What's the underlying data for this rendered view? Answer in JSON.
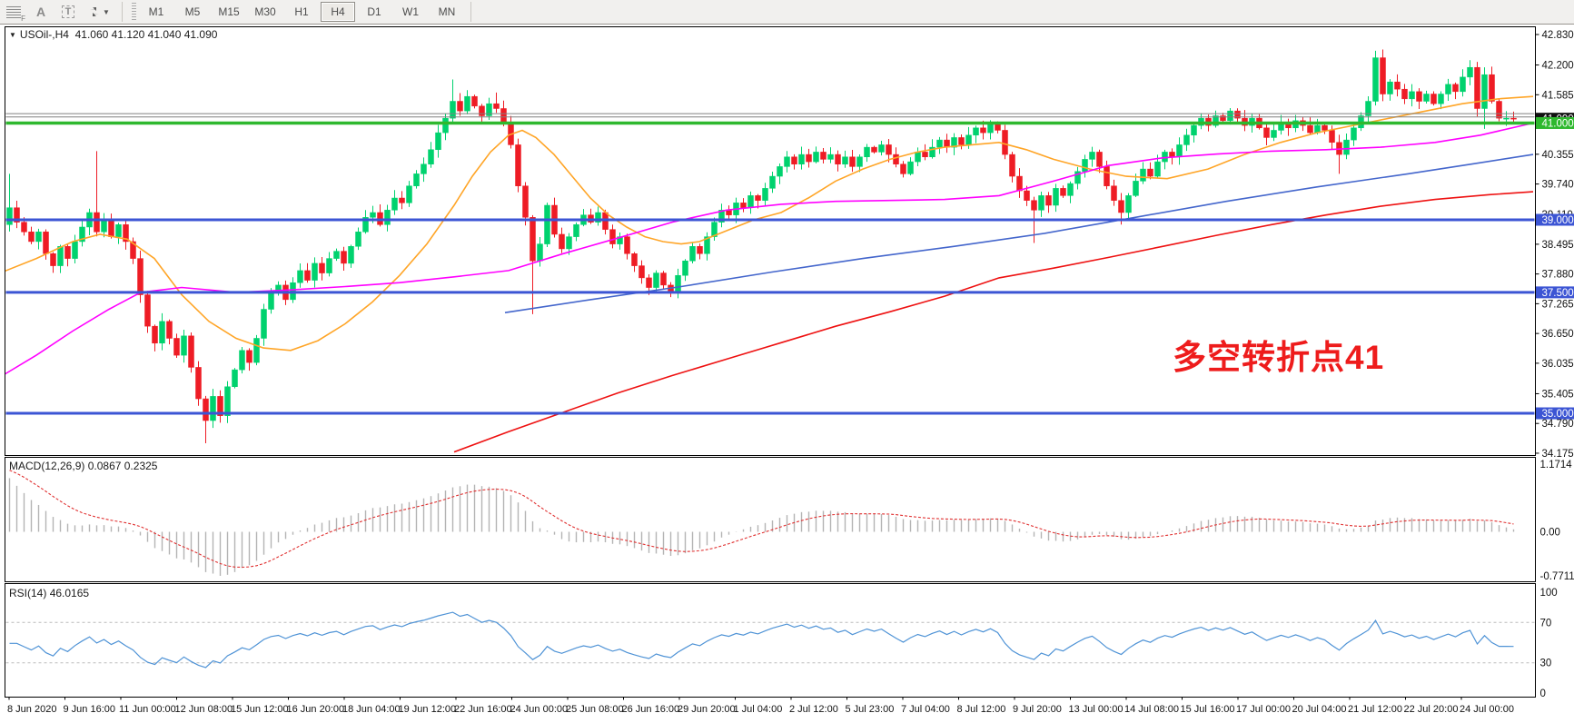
{
  "toolbar": {
    "tools": [
      {
        "name": "template-grid-icon",
        "label": "F"
      },
      {
        "name": "text-label-icon",
        "label": "A"
      },
      {
        "name": "text-box-icon",
        "label": "T"
      },
      {
        "name": "cursor-arrows-icon",
        "label": ""
      }
    ],
    "timeframes": [
      "M1",
      "M5",
      "M15",
      "M30",
      "H1",
      "H4",
      "D1",
      "W1",
      "MN"
    ],
    "active_timeframe": "H4"
  },
  "chart": {
    "title_symbol": "USOil-,H4",
    "title_ohlc": "41.060 41.120 41.040 41.090",
    "annotation": {
      "text": "多空转折点41",
      "color": "#ee1c1c"
    },
    "price_axis_labels": [
      "42.830",
      "42.200",
      "41.585",
      "40.355",
      "39.740",
      "39.110",
      "38.495",
      "37.880",
      "37.265",
      "36.650",
      "36.035",
      "35.405",
      "34.790",
      "34.175"
    ],
    "price_axis_values": [
      42.83,
      42.2,
      41.585,
      40.355,
      39.74,
      39.11,
      38.495,
      37.88,
      37.265,
      36.65,
      36.035,
      35.405,
      34.79,
      34.175
    ],
    "price_boxes": [
      {
        "text": "41.090",
        "value": 41.09,
        "bg": "#111111"
      },
      {
        "text": "39.000",
        "value": 39.0,
        "bg": "#3c55d4"
      },
      {
        "text": "37.500",
        "value": 37.5,
        "bg": "#3c55d4"
      },
      {
        "text": "35.000",
        "value": 35.0,
        "bg": "#3c55d4"
      },
      {
        "text": "41.000",
        "value": 41.0,
        "bg": "#2eb82e"
      }
    ],
    "time_axis": [
      "8 Jun 2020",
      "9 Jun 16:00",
      "11 Jun 00:00",
      "12 Jun 08:00",
      "15 Jun 12:00",
      "16 Jun 20:00",
      "18 Jun 04:00",
      "19 Jun 12:00",
      "22 Jun 16:00",
      "24 Jun 00:00",
      "25 Jun 08:00",
      "26 Jun 16:00",
      "29 Jun 20:00",
      "1 Jul 04:00",
      "2 Jul 12:00",
      "5 Jul 23:00",
      "7 Jul 04:00",
      "8 Jul 12:00",
      "9 Jul 20:00",
      "13 Jul 00:00",
      "14 Jul 08:00",
      "15 Jul 16:00",
      "17 Jul 00:00",
      "20 Jul 04:00",
      "21 Jul 12:00",
      "22 Jul 20:00",
      "24 Jul 00:00"
    ]
  },
  "indicators": {
    "macd": {
      "label": "MACD(12,26,9)",
      "values_text": "0.0867 0.2325",
      "scale": [
        "1.1714",
        "0.00",
        "-0.7711"
      ]
    },
    "rsi": {
      "label": "RSI(14)",
      "value": "46.0165",
      "scale": [
        "100",
        "70",
        "30",
        "0"
      ],
      "levels": [
        70,
        30
      ]
    }
  },
  "chart_data": {
    "type": "candlestick",
    "symbol": "USOil",
    "timeframe": "H4",
    "current": {
      "open": 41.06,
      "high": 41.12,
      "low": 41.04,
      "close": 41.09
    },
    "ylim": [
      34.175,
      42.83
    ],
    "key_levels": [
      {
        "price": 41.0,
        "color": "#2eb82e",
        "width": 3.5
      },
      {
        "price": 39.0,
        "color": "#3c55d4",
        "width": 3
      },
      {
        "price": 37.5,
        "color": "#3c55d4",
        "width": 3
      },
      {
        "price": 35.0,
        "color": "#3c55d4",
        "width": 3
      }
    ],
    "ask_lines": [
      41.195,
      41.125
    ],
    "open0": 38.9,
    "closes": [
      39.25,
      38.95,
      38.75,
      38.55,
      38.75,
      38.3,
      38.05,
      38.45,
      38.2,
      38.55,
      38.85,
      39.15,
      38.75,
      39.0,
      38.65,
      38.9,
      38.55,
      38.2,
      37.45,
      36.8,
      36.45,
      36.9,
      36.55,
      36.2,
      36.6,
      35.95,
      35.3,
      34.85,
      35.35,
      34.95,
      35.55,
      35.9,
      36.3,
      36.05,
      36.55,
      37.15,
      37.5,
      37.65,
      37.35,
      37.7,
      37.95,
      37.75,
      38.1,
      37.9,
      38.2,
      38.35,
      38.1,
      38.45,
      38.75,
      39.05,
      39.15,
      38.9,
      39.2,
      39.45,
      39.35,
      39.7,
      39.95,
      40.15,
      40.45,
      40.8,
      41.1,
      41.45,
      41.25,
      41.55,
      41.35,
      41.15,
      41.4,
      41.3,
      41.0,
      40.55,
      39.7,
      39.05,
      38.15,
      38.5,
      39.3,
      38.7,
      38.4,
      38.65,
      38.9,
      39.1,
      38.95,
      39.15,
      38.8,
      38.5,
      38.65,
      38.3,
      38.05,
      37.8,
      37.6,
      37.9,
      37.65,
      37.5,
      37.85,
      38.15,
      38.45,
      38.3,
      38.65,
      38.95,
      39.2,
      39.1,
      39.35,
      39.25,
      39.5,
      39.4,
      39.65,
      39.9,
      40.1,
      40.3,
      40.15,
      40.35,
      40.2,
      40.4,
      40.25,
      40.35,
      40.15,
      40.3,
      40.1,
      40.3,
      40.5,
      40.4,
      40.55,
      40.35,
      40.15,
      39.95,
      40.2,
      40.4,
      40.3,
      40.5,
      40.65,
      40.5,
      40.7,
      40.55,
      40.75,
      40.9,
      40.8,
      41.0,
      40.85,
      40.35,
      39.9,
      39.6,
      39.4,
      39.2,
      39.5,
      39.3,
      39.65,
      39.5,
      39.75,
      40.0,
      40.25,
      40.4,
      40.1,
      39.7,
      39.4,
      39.15,
      39.5,
      39.8,
      40.05,
      39.9,
      40.2,
      40.4,
      40.3,
      40.55,
      40.75,
      40.95,
      41.1,
      40.95,
      41.15,
      41.05,
      41.25,
      41.1,
      40.95,
      41.1,
      40.9,
      40.7,
      40.85,
      41.0,
      40.9,
      41.05,
      40.95,
      40.8,
      40.95,
      40.85,
      40.6,
      40.35,
      40.65,
      40.9,
      41.15,
      41.45,
      42.35,
      41.6,
      41.85,
      41.7,
      41.5,
      41.65,
      41.45,
      41.6,
      41.4,
      41.6,
      41.8,
      41.65,
      41.95,
      42.15,
      41.3,
      42.0,
      41.45,
      41.1,
      41.1,
      41.09
    ],
    "spikes": {
      "0": {
        "h": 39.95
      },
      "12": {
        "h": 40.42
      },
      "27": {
        "l": 34.38
      },
      "61": {
        "h": 41.9
      },
      "67": {
        "h": 41.63
      },
      "72": {
        "l": 37.05
      },
      "141": {
        "l": 38.52
      },
      "153": {
        "l": 38.9
      },
      "183": {
        "l": 39.95
      },
      "189": {
        "h": 42.52
      },
      "201": {
        "h": 42.3
      },
      "203": {
        "l": 40.88
      }
    },
    "colors": {
      "up": "#00d26e",
      "down": "#ee1c25",
      "macd_hist": "#b4b4b4",
      "macd_signal": "#e03030",
      "rsi_line": "#4f93d6",
      "level_dash": "#bcbcbc"
    },
    "ma_lines": [
      {
        "name": "ma-fast-orange",
        "color": "#ffa527",
        "points": [
          [
            0,
            37.9
          ],
          [
            40,
            38.2
          ],
          [
            80,
            38.55
          ],
          [
            110,
            38.7
          ],
          [
            140,
            38.6
          ],
          [
            170,
            38.2
          ],
          [
            200,
            37.45
          ],
          [
            230,
            36.9
          ],
          [
            260,
            36.55
          ],
          [
            290,
            36.35
          ],
          [
            320,
            36.3
          ],
          [
            350,
            36.5
          ],
          [
            380,
            36.85
          ],
          [
            410,
            37.3
          ],
          [
            440,
            37.85
          ],
          [
            470,
            38.5
          ],
          [
            500,
            39.3
          ],
          [
            520,
            39.9
          ],
          [
            540,
            40.4
          ],
          [
            560,
            40.75
          ],
          [
            575,
            40.85
          ],
          [
            590,
            40.7
          ],
          [
            610,
            40.35
          ],
          [
            630,
            39.9
          ],
          [
            650,
            39.45
          ],
          [
            670,
            39.1
          ],
          [
            690,
            38.85
          ],
          [
            710,
            38.65
          ],
          [
            730,
            38.55
          ],
          [
            750,
            38.5
          ],
          [
            770,
            38.55
          ],
          [
            790,
            38.7
          ],
          [
            810,
            38.85
          ],
          [
            830,
            39.0
          ],
          [
            860,
            39.15
          ],
          [
            890,
            39.45
          ],
          [
            920,
            39.8
          ],
          [
            950,
            40.05
          ],
          [
            980,
            40.25
          ],
          [
            1010,
            40.4
          ],
          [
            1040,
            40.5
          ],
          [
            1070,
            40.55
          ],
          [
            1100,
            40.6
          ],
          [
            1130,
            40.45
          ],
          [
            1160,
            40.25
          ],
          [
            1200,
            40.05
          ],
          [
            1240,
            39.9
          ],
          [
            1285,
            39.85
          ],
          [
            1330,
            40.05
          ],
          [
            1370,
            40.35
          ],
          [
            1410,
            40.6
          ],
          [
            1450,
            40.8
          ],
          [
            1490,
            40.95
          ],
          [
            1530,
            41.1
          ],
          [
            1570,
            41.25
          ],
          [
            1610,
            41.4
          ],
          [
            1650,
            41.5
          ],
          [
            1688,
            41.55
          ]
        ]
      },
      {
        "name": "ma-mid-magenta",
        "color": "#ff00ff",
        "points": [
          [
            0,
            35.75
          ],
          [
            40,
            36.2
          ],
          [
            80,
            36.7
          ],
          [
            120,
            37.15
          ],
          [
            155,
            37.5
          ],
          [
            200,
            37.6
          ],
          [
            260,
            37.5
          ],
          [
            320,
            37.55
          ],
          [
            380,
            37.62
          ],
          [
            440,
            37.7
          ],
          [
            500,
            37.82
          ],
          [
            560,
            37.95
          ],
          [
            620,
            38.3
          ],
          [
            680,
            38.62
          ],
          [
            740,
            38.95
          ],
          [
            800,
            39.2
          ],
          [
            860,
            39.32
          ],
          [
            920,
            39.38
          ],
          [
            980,
            39.4
          ],
          [
            1040,
            39.42
          ],
          [
            1100,
            39.5
          ],
          [
            1160,
            39.8
          ],
          [
            1220,
            40.12
          ],
          [
            1280,
            40.28
          ],
          [
            1340,
            40.36
          ],
          [
            1400,
            40.42
          ],
          [
            1460,
            40.45
          ],
          [
            1520,
            40.5
          ],
          [
            1580,
            40.6
          ],
          [
            1630,
            40.75
          ],
          [
            1688,
            41.0
          ]
        ]
      },
      {
        "name": "ma-slow-blue",
        "color": "#4466cc",
        "points": [
          [
            556,
            37.08
          ],
          [
            650,
            37.35
          ],
          [
            750,
            37.62
          ],
          [
            850,
            37.92
          ],
          [
            950,
            38.2
          ],
          [
            1050,
            38.45
          ],
          [
            1150,
            38.72
          ],
          [
            1250,
            39.05
          ],
          [
            1350,
            39.38
          ],
          [
            1450,
            39.68
          ],
          [
            1550,
            39.95
          ],
          [
            1620,
            40.15
          ],
          [
            1688,
            40.35
          ]
        ]
      },
      {
        "name": "ma-long-red",
        "color": "#ee1111",
        "points": [
          [
            500,
            34.2
          ],
          [
            560,
            34.62
          ],
          [
            620,
            35.02
          ],
          [
            680,
            35.42
          ],
          [
            740,
            35.78
          ],
          [
            800,
            36.12
          ],
          [
            860,
            36.46
          ],
          [
            920,
            36.8
          ],
          [
            980,
            37.1
          ],
          [
            1040,
            37.42
          ],
          [
            1100,
            37.8
          ],
          [
            1160,
            38.0
          ],
          [
            1220,
            38.22
          ],
          [
            1280,
            38.45
          ],
          [
            1340,
            38.68
          ],
          [
            1400,
            38.9
          ],
          [
            1460,
            39.1
          ],
          [
            1520,
            39.28
          ],
          [
            1580,
            39.42
          ],
          [
            1640,
            39.52
          ],
          [
            1688,
            39.58
          ]
        ]
      }
    ]
  }
}
